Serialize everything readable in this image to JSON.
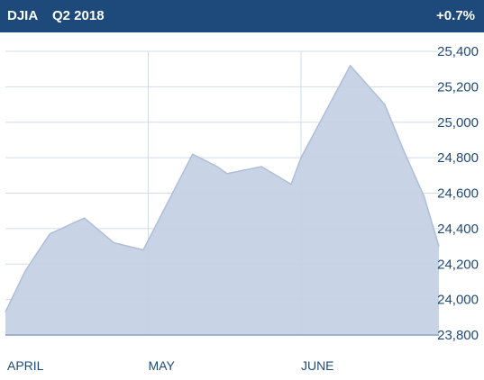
{
  "header": {
    "ticker": "DJIA",
    "period": "Q2 2018",
    "change": "+0.7%"
  },
  "colors": {
    "header_bg": "#1d4a7a",
    "area_fill": "#c5d1e4",
    "area_line": "#aebdd8",
    "grid": "#d2dce9",
    "baseline": "#9fb1cf",
    "label": "#1d4a7a"
  },
  "chart_data": {
    "type": "area",
    "title": "",
    "xlabel": "",
    "ylabel": "",
    "ylim": [
      23800,
      25400
    ],
    "yticks": [
      25400,
      25200,
      25000,
      24800,
      24600,
      24400,
      24200,
      24000,
      23800
    ],
    "ytick_labels": [
      "25,400",
      "25,200",
      "25,000",
      "24,800",
      "24,600",
      "24,400",
      "24,200",
      "24,000",
      "23,800"
    ],
    "xtick_labels": [
      "APRIL",
      "MAY",
      "JUNE"
    ],
    "grid": true,
    "series": [
      {
        "points": [
          {
            "x": "2018-04-02",
            "y": 23930
          },
          {
            "x": "2018-04-06",
            "y": 24160
          },
          {
            "x": "2018-04-11",
            "y": 24370
          },
          {
            "x": "2018-04-18",
            "y": 24460
          },
          {
            "x": "2018-04-24",
            "y": 24320
          },
          {
            "x": "2018-04-30",
            "y": 24280
          },
          {
            "x": "2018-05-10",
            "y": 24820
          },
          {
            "x": "2018-05-15",
            "y": 24750
          },
          {
            "x": "2018-05-17",
            "y": 24710
          },
          {
            "x": "2018-05-24",
            "y": 24750
          },
          {
            "x": "2018-05-30",
            "y": 24650
          },
          {
            "x": "2018-06-01",
            "y": 24800
          },
          {
            "x": "2018-06-11",
            "y": 25320
          },
          {
            "x": "2018-06-18",
            "y": 25100
          },
          {
            "x": "2018-06-22",
            "y": 24830
          },
          {
            "x": "2018-06-26",
            "y": 24580
          },
          {
            "x": "2018-06-29",
            "y": 24300
          }
        ]
      }
    ]
  }
}
